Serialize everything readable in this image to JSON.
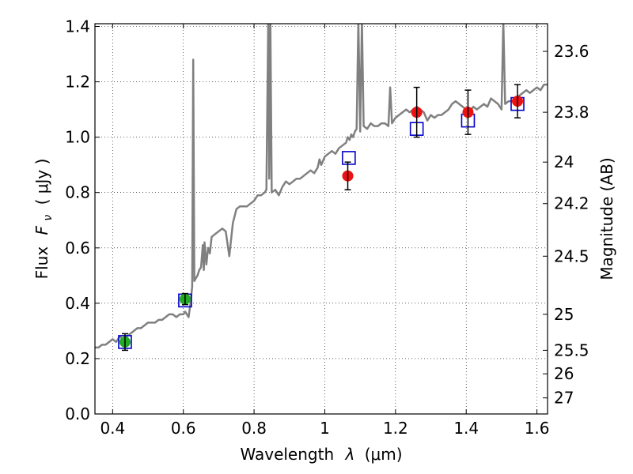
{
  "chart_data": {
    "type": "scatter",
    "xlabel_text": "Wavelength",
    "xlabel_symbol": "λ",
    "xlabel_unit": "(μm)",
    "ylabel_text": "Flux",
    "ylabel_symbol": "F",
    "ylabel_subscript": "ν",
    "ylabel_unit": "( μJy )",
    "right_label": "Magnitude (AB)",
    "xlim": [
      0.35,
      1.63
    ],
    "ylim": [
      0.0,
      1.41
    ],
    "grid": true,
    "x_ticks": [
      0.4,
      0.6,
      0.8,
      1.0,
      1.2,
      1.4,
      1.6
    ],
    "x_tick_labels": [
      "0.4",
      "0.6",
      "0.8",
      "1",
      "1.2",
      "1.4",
      "1.6"
    ],
    "y_ticks": [
      0.0,
      0.2,
      0.4,
      0.6,
      0.8,
      1.0,
      1.2,
      1.4
    ],
    "y_tick_labels": [
      "0.0",
      "0.2",
      "0.4",
      "0.6",
      "0.8",
      "1.0",
      "1.2",
      "1.4"
    ],
    "right_ticks": [
      {
        "label": "23.6",
        "flux": 1.31
      },
      {
        "label": "23.8",
        "flux": 1.09
      },
      {
        "label": "24",
        "flux": 0.91
      },
      {
        "label": "24.2",
        "flux": 0.76
      },
      {
        "label": "24.5",
        "flux": 0.57
      },
      {
        "label": "25",
        "flux": 0.36
      },
      {
        "label": "25.5",
        "flux": 0.23
      },
      {
        "label": "26",
        "flux": 0.145
      },
      {
        "label": "27",
        "flux": 0.058
      }
    ],
    "colors": {
      "spectrum": "#808080",
      "observed_green": "#22aa22",
      "observed_red": "#ee1111",
      "model_box": "#0000cc",
      "error_bar": "#000000"
    },
    "model_spectrum": [
      [
        0.35,
        0.24
      ],
      [
        0.36,
        0.24
      ],
      [
        0.37,
        0.25
      ],
      [
        0.38,
        0.25
      ],
      [
        0.39,
        0.26
      ],
      [
        0.4,
        0.27
      ],
      [
        0.41,
        0.26
      ],
      [
        0.42,
        0.28
      ],
      [
        0.43,
        0.27
      ],
      [
        0.44,
        0.28
      ],
      [
        0.45,
        0.29
      ],
      [
        0.46,
        0.3
      ],
      [
        0.47,
        0.31
      ],
      [
        0.48,
        0.31
      ],
      [
        0.49,
        0.32
      ],
      [
        0.5,
        0.33
      ],
      [
        0.51,
        0.33
      ],
      [
        0.52,
        0.33
      ],
      [
        0.53,
        0.34
      ],
      [
        0.54,
        0.34
      ],
      [
        0.55,
        0.35
      ],
      [
        0.56,
        0.36
      ],
      [
        0.57,
        0.36
      ],
      [
        0.58,
        0.35
      ],
      [
        0.59,
        0.36
      ],
      [
        0.6,
        0.36
      ],
      [
        0.605,
        0.37
      ],
      [
        0.61,
        0.36
      ],
      [
        0.615,
        0.35
      ],
      [
        0.62,
        0.4
      ],
      [
        0.625,
        0.46
      ],
      [
        0.628,
        1.28
      ],
      [
        0.631,
        0.48
      ],
      [
        0.635,
        0.49
      ],
      [
        0.64,
        0.5
      ],
      [
        0.645,
        0.52
      ],
      [
        0.65,
        0.53
      ],
      [
        0.655,
        0.61
      ],
      [
        0.658,
        0.52
      ],
      [
        0.66,
        0.62
      ],
      [
        0.665,
        0.54
      ],
      [
        0.67,
        0.6
      ],
      [
        0.675,
        0.58
      ],
      [
        0.68,
        0.64
      ],
      [
        0.69,
        0.65
      ],
      [
        0.7,
        0.66
      ],
      [
        0.71,
        0.67
      ],
      [
        0.72,
        0.66
      ],
      [
        0.73,
        0.57
      ],
      [
        0.74,
        0.69
      ],
      [
        0.75,
        0.74
      ],
      [
        0.76,
        0.75
      ],
      [
        0.77,
        0.75
      ],
      [
        0.78,
        0.75
      ],
      [
        0.79,
        0.76
      ],
      [
        0.8,
        0.77
      ],
      [
        0.81,
        0.79
      ],
      [
        0.82,
        0.79
      ],
      [
        0.83,
        0.8
      ],
      [
        0.835,
        0.81
      ],
      [
        0.84,
        1.42
      ],
      [
        0.843,
        0.85
      ],
      [
        0.846,
        1.42
      ],
      [
        0.85,
        0.8
      ],
      [
        0.86,
        0.81
      ],
      [
        0.87,
        0.79
      ],
      [
        0.88,
        0.82
      ],
      [
        0.89,
        0.84
      ],
      [
        0.9,
        0.83
      ],
      [
        0.91,
        0.84
      ],
      [
        0.92,
        0.85
      ],
      [
        0.93,
        0.85
      ],
      [
        0.94,
        0.86
      ],
      [
        0.95,
        0.87
      ],
      [
        0.96,
        0.88
      ],
      [
        0.97,
        0.87
      ],
      [
        0.98,
        0.89
      ],
      [
        0.985,
        0.92
      ],
      [
        0.99,
        0.9
      ],
      [
        1.0,
        0.93
      ],
      [
        1.01,
        0.94
      ],
      [
        1.02,
        0.95
      ],
      [
        1.03,
        0.94
      ],
      [
        1.04,
        0.96
      ],
      [
        1.05,
        0.97
      ],
      [
        1.06,
        0.98
      ],
      [
        1.065,
        1.0
      ],
      [
        1.07,
        0.99
      ],
      [
        1.075,
        1.01
      ],
      [
        1.08,
        1.0
      ],
      [
        1.085,
        1.02
      ],
      [
        1.09,
        1.03
      ],
      [
        1.095,
        1.42
      ],
      [
        1.1,
        1.02
      ],
      [
        1.105,
        1.42
      ],
      [
        1.11,
        1.04
      ],
      [
        1.12,
        1.03
      ],
      [
        1.13,
        1.05
      ],
      [
        1.14,
        1.04
      ],
      [
        1.15,
        1.04
      ],
      [
        1.16,
        1.05
      ],
      [
        1.17,
        1.05
      ],
      [
        1.18,
        1.04
      ],
      [
        1.185,
        1.18
      ],
      [
        1.19,
        1.05
      ],
      [
        1.2,
        1.07
      ],
      [
        1.21,
        1.08
      ],
      [
        1.22,
        1.09
      ],
      [
        1.23,
        1.1
      ],
      [
        1.24,
        1.09
      ],
      [
        1.25,
        1.1
      ],
      [
        1.26,
        1.11
      ],
      [
        1.27,
        1.1
      ],
      [
        1.28,
        1.09
      ],
      [
        1.29,
        1.06
      ],
      [
        1.3,
        1.08
      ],
      [
        1.31,
        1.07
      ],
      [
        1.32,
        1.08
      ],
      [
        1.33,
        1.08
      ],
      [
        1.34,
        1.09
      ],
      [
        1.35,
        1.1
      ],
      [
        1.36,
        1.12
      ],
      [
        1.37,
        1.13
      ],
      [
        1.38,
        1.12
      ],
      [
        1.39,
        1.11
      ],
      [
        1.4,
        1.1
      ],
      [
        1.41,
        1.09
      ],
      [
        1.42,
        1.11
      ],
      [
        1.43,
        1.1
      ],
      [
        1.44,
        1.11
      ],
      [
        1.45,
        1.12
      ],
      [
        1.46,
        1.11
      ],
      [
        1.47,
        1.14
      ],
      [
        1.48,
        1.13
      ],
      [
        1.49,
        1.12
      ],
      [
        1.5,
        1.1
      ],
      [
        1.505,
        1.42
      ],
      [
        1.51,
        1.12
      ],
      [
        1.52,
        1.13
      ],
      [
        1.53,
        1.13
      ],
      [
        1.54,
        1.14
      ],
      [
        1.55,
        1.15
      ],
      [
        1.56,
        1.16
      ],
      [
        1.57,
        1.17
      ],
      [
        1.58,
        1.16
      ],
      [
        1.59,
        1.17
      ],
      [
        1.6,
        1.18
      ],
      [
        1.61,
        1.17
      ],
      [
        1.62,
        1.19
      ],
      [
        1.63,
        1.19
      ]
    ],
    "observed_points": [
      {
        "x": 0.435,
        "y": 0.26,
        "err": 0.03,
        "color": "green"
      },
      {
        "x": 0.605,
        "y": 0.415,
        "err": 0.02,
        "color": "green"
      },
      {
        "x": 1.065,
        "y": 0.86,
        "err": 0.05,
        "color": "red"
      },
      {
        "x": 1.26,
        "y": 1.09,
        "err": 0.09,
        "color": "red"
      },
      {
        "x": 1.405,
        "y": 1.09,
        "err": 0.08,
        "color": "red"
      },
      {
        "x": 1.545,
        "y": 1.13,
        "err": 0.06,
        "color": "red"
      }
    ],
    "model_photometry": [
      {
        "x": 0.435,
        "y": 0.26
      },
      {
        "x": 0.605,
        "y": 0.41
      },
      {
        "x": 1.068,
        "y": 0.925
      },
      {
        "x": 1.26,
        "y": 1.03
      },
      {
        "x": 1.405,
        "y": 1.06
      },
      {
        "x": 1.545,
        "y": 1.12
      }
    ]
  }
}
